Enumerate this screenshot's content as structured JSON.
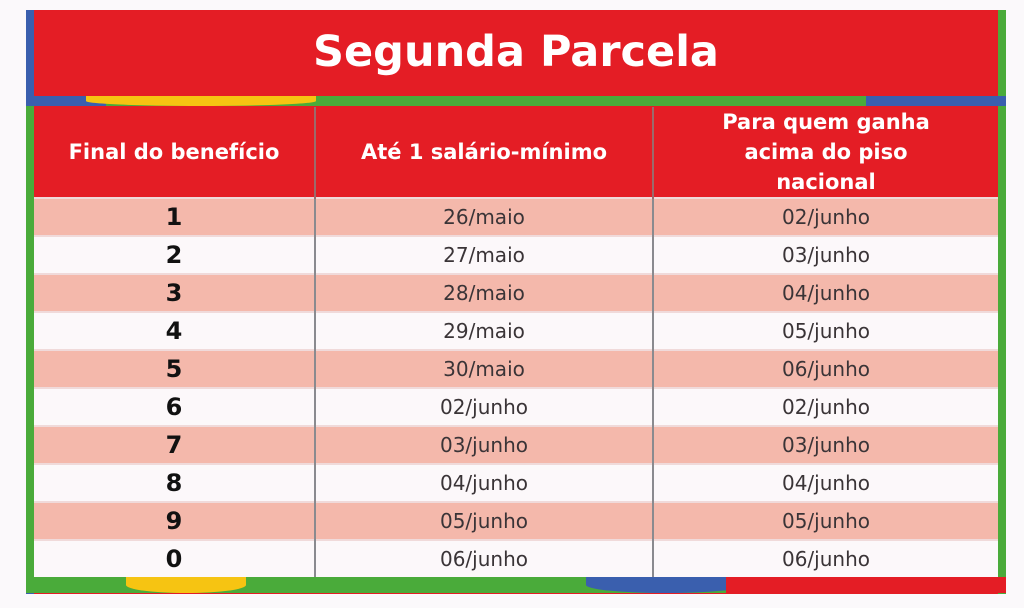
{
  "title": "Segunda Parcela",
  "colors": {
    "red": "#e41d25",
    "pink_row": "#f4b8ab",
    "white_row": "#fcf8fa",
    "green": "#4aab3a",
    "blue": "#3a5fae",
    "yellow": "#f6c412"
  },
  "table": {
    "headers": [
      "Final do benefício",
      "Até 1 salário-mínimo",
      "Para quem ganha acima do piso nacional"
    ],
    "rows": [
      [
        "1",
        "26/maio",
        "02/junho"
      ],
      [
        "2",
        "27/maio",
        "03/junho"
      ],
      [
        "3",
        "28/maio",
        "04/junho"
      ],
      [
        "4",
        "29/maio",
        "05/junho"
      ],
      [
        "5",
        "30/maio",
        "06/junho"
      ],
      [
        "6",
        "02/junho",
        "02/junho"
      ],
      [
        "7",
        "03/junho",
        "03/junho"
      ],
      [
        "8",
        "04/junho",
        "04/junho"
      ],
      [
        "9",
        "05/junho",
        "05/junho"
      ],
      [
        "0",
        "06/junho",
        "06/junho"
      ]
    ]
  }
}
